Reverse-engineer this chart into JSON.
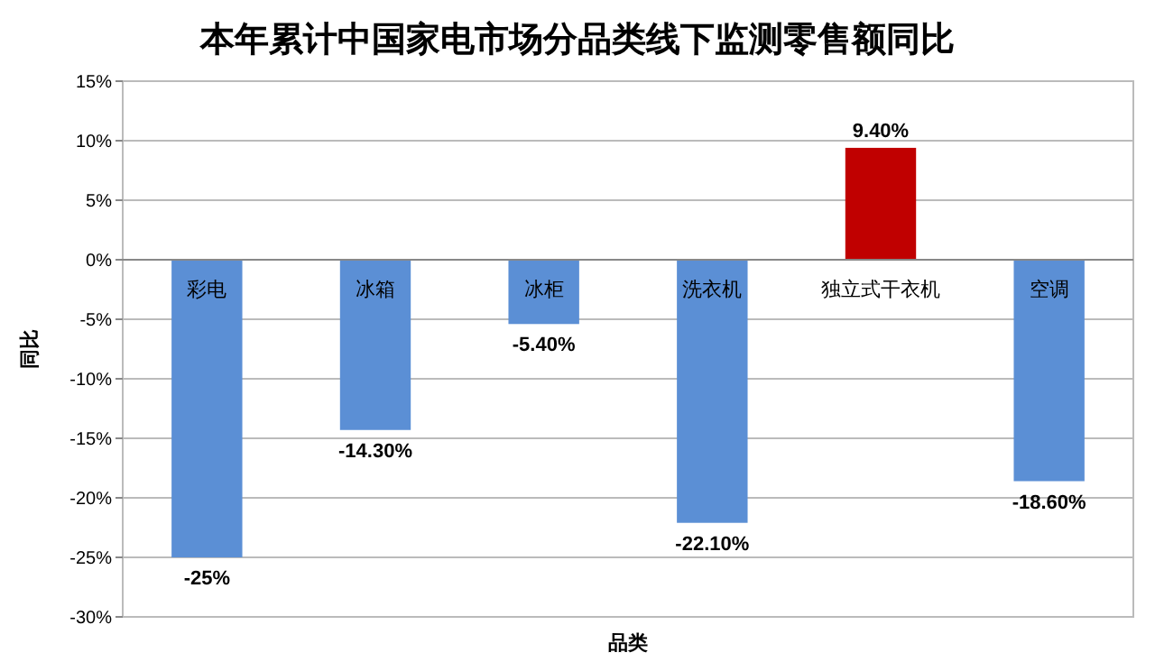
{
  "chart_data": {
    "type": "bar",
    "title": "本年累计中国家电市场分品类线下监测零售额同比",
    "xlabel": "品类",
    "ylabel": "同比",
    "categories": [
      "彩电",
      "冰箱",
      "冰柜",
      "洗衣机",
      "独立式干衣机",
      "空调"
    ],
    "values": [
      -25,
      -14.3,
      -5.4,
      -22.1,
      9.4,
      -18.6
    ],
    "colors": [
      "#5b8fd5",
      "#5b8fd5",
      "#5b8fd5",
      "#5b8fd5",
      "#c00000",
      "#5b8fd5"
    ],
    "value_labels": [
      "-25%",
      "-14.30%",
      "-5.40%",
      "-22.10%",
      "9.40%",
      "-18.60%"
    ],
    "ylim": [
      -30,
      15
    ],
    "yticks": [
      {
        "value": -30,
        "label": "-30%"
      },
      {
        "value": -25,
        "label": "-25%"
      },
      {
        "value": -20,
        "label": "-20%"
      },
      {
        "value": -15,
        "label": "-15%"
      },
      {
        "value": -10,
        "label": "-10%"
      },
      {
        "value": -5,
        "label": "-5%"
      },
      {
        "value": 0,
        "label": "0%"
      },
      {
        "value": 5,
        "label": "5%"
      },
      {
        "value": 10,
        "label": "10%"
      },
      {
        "value": 15,
        "label": "15%"
      }
    ],
    "grid": "y"
  }
}
